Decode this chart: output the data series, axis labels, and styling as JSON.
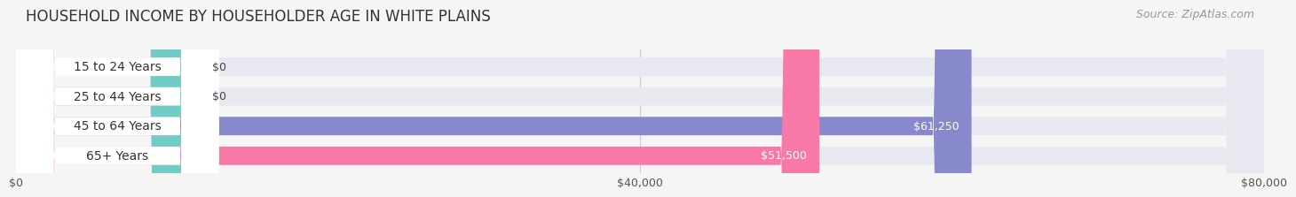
{
  "title": "HOUSEHOLD INCOME BY HOUSEHOLDER AGE IN WHITE PLAINS",
  "source": "Source: ZipAtlas.com",
  "categories": [
    "15 to 24 Years",
    "25 to 44 Years",
    "45 to 64 Years",
    "65+ Years"
  ],
  "values": [
    0,
    0,
    61250,
    51500
  ],
  "bar_colors": [
    "#c8a0d0",
    "#70ccc4",
    "#8888cc",
    "#f878a8"
  ],
  "bar_labels": [
    "$0",
    "$0",
    "$61,250",
    "$51,500"
  ],
  "label_colors": [
    "#444444",
    "#444444",
    "#ffffff",
    "#ffffff"
  ],
  "xlim": [
    0,
    80000
  ],
  "xticks": [
    0,
    40000,
    80000
  ],
  "xticklabels": [
    "$0",
    "$40,000",
    "$80,000"
  ],
  "background_color": "#f5f5f5",
  "bar_bg_color": "#e8e8f0",
  "white_label_bg": "#ffffff",
  "title_fontsize": 12,
  "source_fontsize": 9,
  "tick_fontsize": 9,
  "cat_fontsize": 10,
  "val_fontsize": 9
}
